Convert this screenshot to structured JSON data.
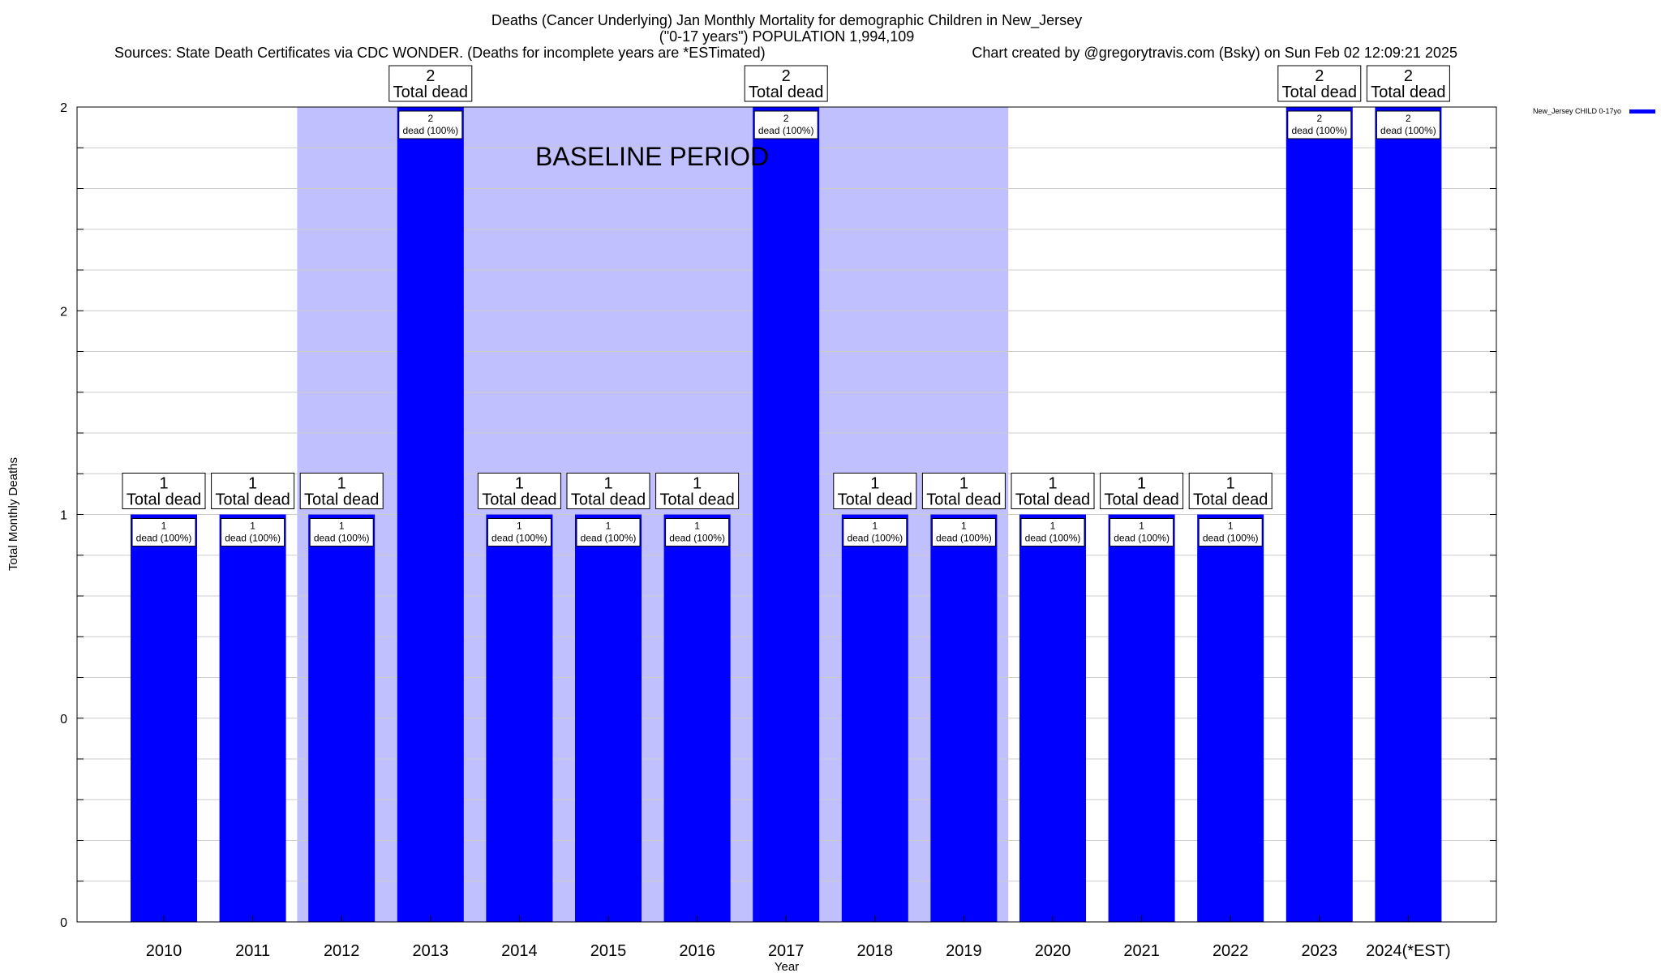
{
  "chart_data": {
    "type": "bar",
    "title_lines": [
      "Deaths (Cancer Underlying) Jan Monthly Mortality for demographic Children in New_Jersey",
      "(\"0-17 years\") POPULATION 1,994,109"
    ],
    "sources_text": "Sources: State Death Certificates via CDC WONDER. (Deaths for incomplete years are *ESTimated)",
    "credit_text": "Chart created by @gregorytravis.com (Bsky) on Sun Feb 02 12:09:21 2025",
    "xlabel": "Year",
    "ylabel": "Total Monthly Deaths",
    "yticks": [
      "0",
      "0",
      "1",
      "2",
      "2"
    ],
    "ylim": [
      0,
      2
    ],
    "grid": true,
    "bar_color": "#0000ff",
    "baseline_color": "#c0c0ff",
    "baseline_label": "BASELINE PERIOD",
    "baseline_range": [
      "2012",
      "2019"
    ],
    "categories": [
      "2010",
      "2011",
      "2012",
      "2013",
      "2014",
      "2015",
      "2016",
      "2017",
      "2018",
      "2019",
      "2020",
      "2021",
      "2022",
      "2023",
      "2024(*EST)"
    ],
    "series": [
      {
        "name": "New_Jersey CHILD 0-17yo",
        "values": [
          1,
          1,
          1,
          2,
          1,
          1,
          1,
          2,
          1,
          1,
          1,
          1,
          1,
          2,
          2
        ]
      }
    ],
    "total_labels": [
      {
        "value": "1",
        "text": "Total dead"
      },
      {
        "value": "1",
        "text": "Total dead"
      },
      {
        "value": "1",
        "text": "Total dead"
      },
      {
        "value": "2",
        "text": "Total dead"
      },
      {
        "value": "1",
        "text": "Total dead"
      },
      {
        "value": "1",
        "text": "Total dead"
      },
      {
        "value": "1",
        "text": "Total dead"
      },
      {
        "value": "2",
        "text": "Total dead"
      },
      {
        "value": "1",
        "text": "Total dead"
      },
      {
        "value": "1",
        "text": "Total dead"
      },
      {
        "value": "1",
        "text": "Total dead"
      },
      {
        "value": "1",
        "text": "Total dead"
      },
      {
        "value": "1",
        "text": "Total dead"
      },
      {
        "value": "2",
        "text": "Total dead"
      },
      {
        "value": "2",
        "text": "Total dead"
      }
    ],
    "bar_labels": [
      {
        "value": "1",
        "text": "dead (100%)"
      },
      {
        "value": "1",
        "text": "dead (100%)"
      },
      {
        "value": "1",
        "text": "dead (100%)"
      },
      {
        "value": "2",
        "text": "dead (100%)"
      },
      {
        "value": "1",
        "text": "dead (100%)"
      },
      {
        "value": "1",
        "text": "dead (100%)"
      },
      {
        "value": "1",
        "text": "dead (100%)"
      },
      {
        "value": "2",
        "text": "dead (100%)"
      },
      {
        "value": "1",
        "text": "dead (100%)"
      },
      {
        "value": "1",
        "text": "dead (100%)"
      },
      {
        "value": "1",
        "text": "dead (100%)"
      },
      {
        "value": "1",
        "text": "dead (100%)"
      },
      {
        "value": "1",
        "text": "dead (100%)"
      },
      {
        "value": "2",
        "text": "dead (100%)"
      },
      {
        "value": "2",
        "text": "dead (100%)"
      }
    ],
    "legend_placement": "top-right"
  }
}
